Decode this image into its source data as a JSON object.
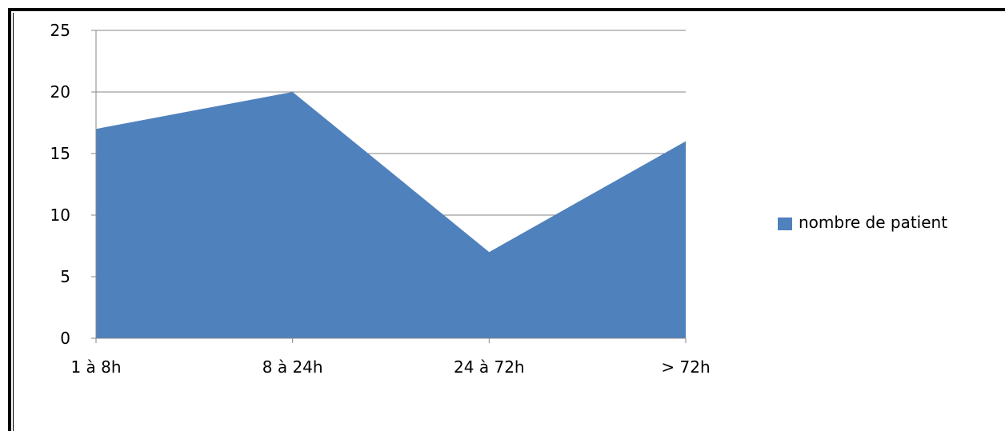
{
  "chart_data": {
    "type": "area",
    "categories": [
      "1 à 8h",
      "8 à 24h",
      "24 à 72h",
      "> 72h"
    ],
    "series": [
      {
        "name": "nombre de patient",
        "values": [
          17,
          20,
          7,
          16
        ],
        "color": "#4F81BD"
      }
    ],
    "ylim": [
      0,
      25
    ],
    "yticks": [
      "0",
      "5",
      "10",
      "15",
      "20",
      "25"
    ],
    "title": "",
    "xlabel": "",
    "ylabel": "",
    "grid": true,
    "legend_position": "right"
  }
}
